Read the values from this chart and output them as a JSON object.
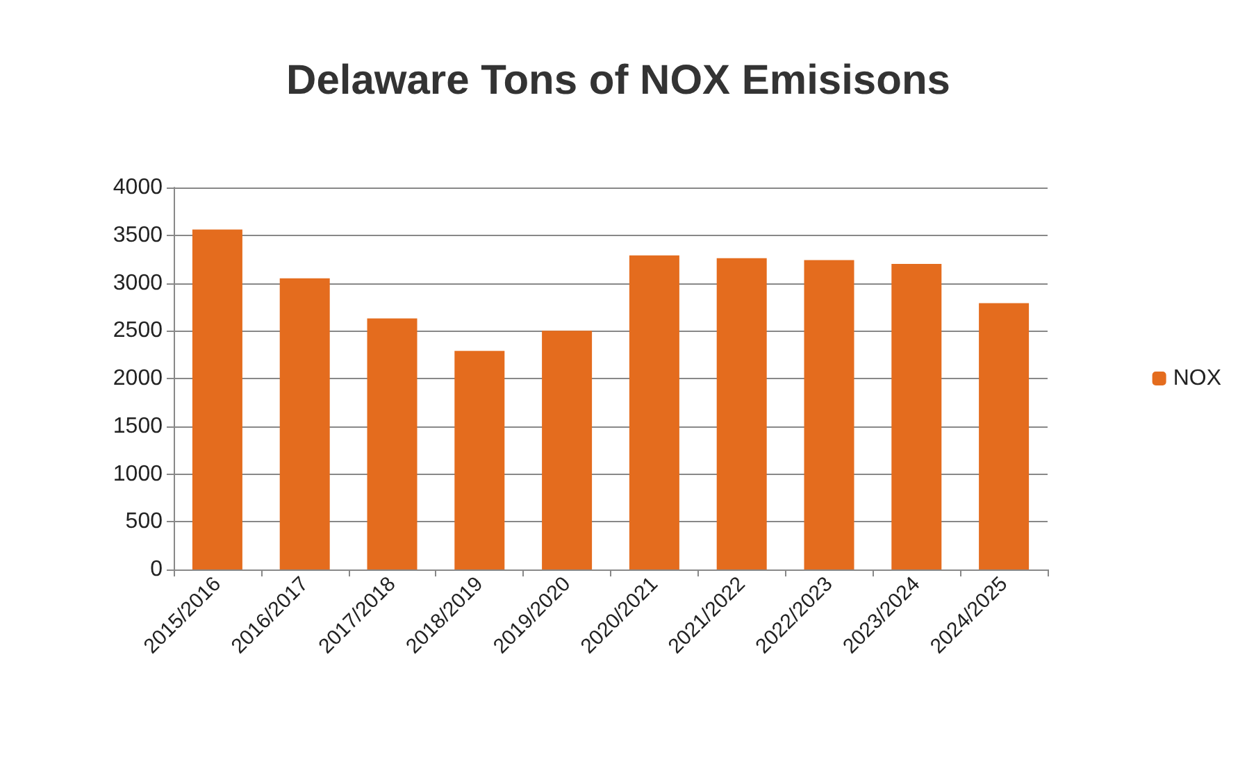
{
  "chart_data": {
    "type": "bar",
    "title": "Delaware Tons of NOX Emisisons",
    "categories": [
      "2015/2016",
      "2016/2017",
      "2017/2018",
      "2018/2019",
      "2019/2020",
      "2020/2021",
      "2021/2022",
      "2022/2023",
      "2023/2024",
      "2024/2025"
    ],
    "series": [
      {
        "name": "NOX",
        "color": "#e46c1e",
        "values": [
          3560,
          3050,
          2630,
          2290,
          2500,
          3290,
          3260,
          3240,
          3200,
          2790
        ]
      }
    ],
    "ylim": [
      0,
      4000
    ],
    "yticks": [
      0,
      500,
      1000,
      1500,
      2000,
      2500,
      3000,
      3500,
      4000
    ],
    "grid": "y",
    "legend": "right"
  }
}
